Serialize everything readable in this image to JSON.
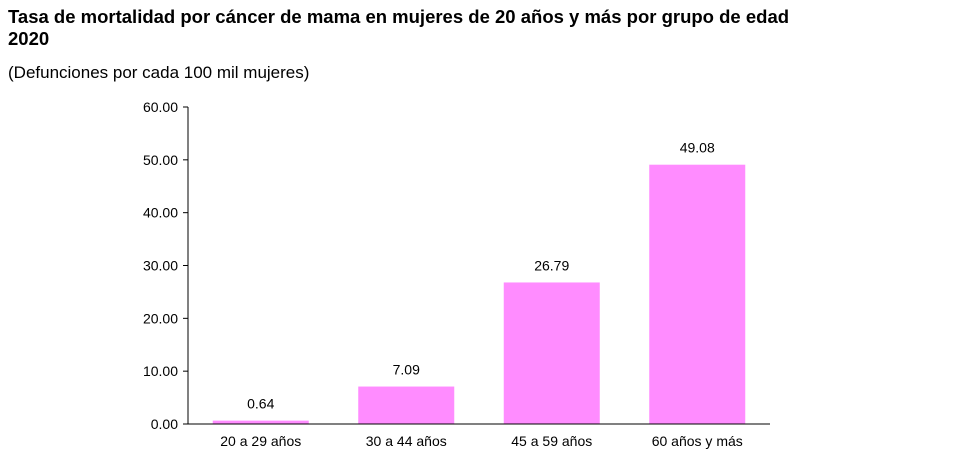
{
  "header": {
    "title_line1": "Tasa de mortalidad por cáncer de mama en mujeres de 20 años y más por grupo de edad",
    "title_line2": "2020",
    "subtitle": "(Defunciones por cada 100 mil mujeres)"
  },
  "colors": {
    "bar": "#ff8cff",
    "axis": "#000000"
  },
  "chart_data": {
    "type": "bar",
    "title": "Tasa de mortalidad por cáncer de mama en mujeres de 20 años y más por grupo de edad 2020",
    "subtitle": "(Defunciones por cada 100 mil mujeres)",
    "categories": [
      "20 a 29 años",
      "30 a 44 años",
      "45 a 59 años",
      "60 años y más"
    ],
    "values": [
      0.64,
      7.09,
      26.79,
      49.08
    ],
    "data_labels": [
      "0.64",
      "7.09",
      "26.79",
      "49.08"
    ],
    "ylim": [
      0,
      60
    ],
    "yticks": [
      0,
      10,
      20,
      30,
      40,
      50,
      60
    ],
    "ytick_labels": [
      "0.00",
      "10.00",
      "20.00",
      "30.00",
      "40.00",
      "50.00",
      "60.00"
    ],
    "grid": false,
    "legend": "none"
  }
}
